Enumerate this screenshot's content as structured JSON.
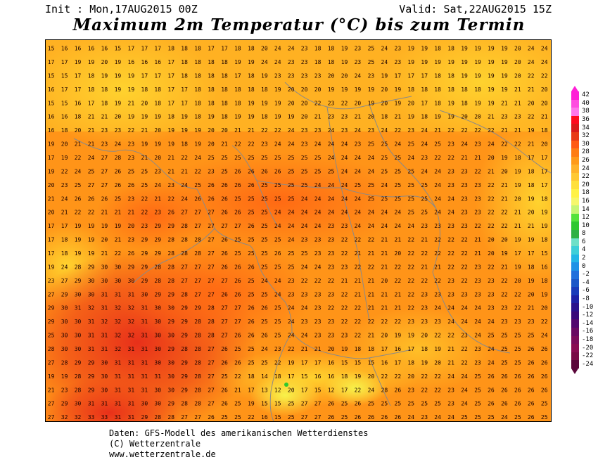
{
  "header": {
    "init": "Init : Mon,17AUG2015 00Z",
    "valid": "Valid: Sat,22AUG2015 15Z",
    "title": "Maximum 2m Temperatur (°C) bis zum Termin"
  },
  "legend": {
    "labels": [
      "42",
      "40",
      "38",
      "36",
      "34",
      "32",
      "30",
      "28",
      "26",
      "24",
      "22",
      "20",
      "18",
      "16",
      "14",
      "12",
      "10",
      "8",
      "6",
      "4",
      "2",
      "0",
      "-2",
      "-4",
      "-6",
      "-8",
      "-10",
      "-12",
      "-14",
      "-16",
      "-18",
      "-20",
      "-22",
      "-24"
    ],
    "colors": [
      "#ff1fd6",
      "#ff4de0",
      "#ff77ea",
      "#ff0a1e",
      "#d91a1a",
      "#e83a16",
      "#ff5a14",
      "#ff7d14",
      "#ff9a1a",
      "#ffb22a",
      "#ffc833",
      "#ffe03c",
      "#fff247",
      "#f6f76b",
      "#c6f575",
      "#54e23c",
      "#2ec82f",
      "#2eb044",
      "#6fe0c8",
      "#3fcfd8",
      "#23b6e6",
      "#1e92e6",
      "#2270dc",
      "#1c58c8",
      "#1a3cba",
      "#1e22a6",
      "#2a128c",
      "#3a0a7a",
      "#52086e",
      "#6a0a62",
      "#7c0c5a",
      "#8a0c52",
      "#7a0a46",
      "#5a063a"
    ]
  },
  "footer": {
    "line1": "Daten: GFS-Modell des amerikanischen Wetterdienstes",
    "line2": "(C) Wetterzentrale",
    "line3": "www.wetterzentrale.de"
  },
  "map_rows": [
    "15 16 16 16 16 15 17 17 17 18 18 18 17 17 18 18 20 24 24 23 18 18 19 23 25 24 23 19 19 18 18 19 19 19 19 20 24 24",
    "17 17 19 19 20 19 16 16 16 17 18 18 18 18 19 19 24 24 23 23 18 18 19 23 25 24 23 19 19 19 19 19 19 19 19 20 24 24",
    "15 15 17 18 19 19 19 17 17 17 18 18 18 18 17 18 19 23 23 23 23 20 20 24 23 19 17 17 17 18 18 19 19 19 19 20 22 22",
    "16 17 17 18 18 19 19 18 18 17 17 18 18 18 18 18 18 19 20 20 20 19 19 19 19 20 19 18 18 18 18 18 18 19 19 21 21 20",
    "15 15 16 17 18 19 21 20 18 17 17 18 18 18 18 19 19 19 20 20 22 23 22 20 19 20 19 20 17 18 19 18 19 19 21 21 20 20",
    "16 16 18 21 21 20 19 19 19 18 19 18 19 18 19 19 18 19 19 20 21 23 23 21 20 18 21 19 18 19 19 20 20 21 23 23 22 21",
    "16 18 20 21 23 23 22 21 20 19 19 19 20 20 21 21 22 22 24 23 23 24 23 24 23 24 22 23 24 21 22 22 22 22 21 21 19 18",
    "19 20 21 21 23 24 23 19 19 19 18 19 20 21 22 22 23 24 24 23 24 24 24 23 25 25 24 25 24 25 23 24 23 24 22 22 21 20",
    "17 19 22 24 27 28 23 21 20 21 22 24 25 25 25 25 25 25 25 25 25 24 24 24 24 25 25 24 23 22 22 21 21 20 19 18 17 17",
    "19 22 24 25 27 26 25 25 23 21 21 22 23 25 26 26 26 26 25 25 25 25 24 24 24 25 25 25 24 24 23 23 22 21 20 19 18 17",
    "20 23 25 27 27 26 26 25 24 23 24 25 26 26 26 26 25 25 25 25 24 24 24 25 25 24 25 25 25 24 23 23 23 22 21 19 18 17",
    "21 24 26 26 26 25 23 22 21 22 24 26 26 26 25 25 25 25 25 24 24 24 24 24 25 25 25 25 25 24 24 23 23 22 21 20 19 18",
    "20 21 22 22 21 21 21 22 23 26 27 27 27 26 26 25 25 24 24 24 24 24 24 24 24 24 24 25 25 24 24 23 23 22 22 21 20 19",
    "17 17 19 19 19 19 20 23 29 29 28 27 27 27 27 26 25 24 24 24 24 23 23 24 24 24 24 24 23 23 23 23 22 22 22 21 21 19",
    "17 18 19 19 20 21 23 29 29 28 28 28 27 26 25 25 25 25 24 23 23 23 22 22 22 21 21 22 21 22 22 22 21 20 20 19 19 18",
    "17 18 19 19 21 22 26 29 29 28 28 28 27 26 25 25 25 26 25 25 23 23 22 21 21 21 20 22 22 22 22 22 21 20 19 17 17 15",
    "19 24 28 29 30 30 29 29 28 28 27 27 27 26 26 26 25 25 25 24 24 23 23 22 22 21 22 22 21 21 22 22 23 22 21 19 18 16",
    "23 27 29 30 30 30 30 29 28 28 27 27 27 27 26 25 24 24 23 22 22 22 21 21 21 20 22 22 22 22 23 22 23 23 22 20 19 18",
    "27 29 30 30 31 31 31 30 29 29 28 27 27 26 26 25 25 24 23 23 23 23 22 21 21 21 21 22 23 23 23 23 23 23 22 22 20 19",
    "29 30 31 32 31 32 32 31 30 30 29 29 28 27 27 26 26 25 24 24 23 22 22 22 21 21 21 22 23 24 24 24 24 23 23 22 21 20",
    "29 30 30 31 32 32 32 31 30 29 29 28 28 27 27 26 25 25 24 23 23 23 22 22 22 22 22 23 23 23 24 24 24 24 23 23 23 22",
    "25 30 30 31 31 32 32 31 30 30 29 28 28 27 26 26 26 25 24 24 23 23 23 22 21 20 19 19 20 22 22 23 24 25 25 25 25 24",
    "28 30 30 31 31 32 31 31 30 29 28 28 27 26 25 25 24 23 22 21 21 20 19 18 18 17 16 17 18 19 21 22 23 24 25 25 26 26",
    "27 28 29 29 30 31 31 31 30 30 29 28 27 26 26 25 25 22 19 17 17 16 15 15 15 16 17 18 19 20 21 22 23 24 25 25 26 26",
    "19 19 28 29 30 31 31 31 31 30 29 28 27 25 22 18 14 18 17 15 16 16 18 19 20 22 22 20 22 22 24 24 25 26 26 26 26 26",
    "21 23 28 29 30 31 31 31 30 30 29 28 27 26 21 17 13 12 20 17 15 12 17 22 24 28 26 23 22 22 23 24 25 26 26 26 26 26",
    "27 29 30 31 31 31 31 30 30 29 28 28 27 26 25 19 15 15 25 27 27 26 25 26 25 25 25 25 25 25 23 24 25 26 26 26 26 25",
    "27 32 32 33 33 31 31 29 28 28 27 27 26 25 25 22 16 15 25 27 27 26 25 26 26 26 26 24 23 24 24 25 25 25 24 25 26 25"
  ]
}
